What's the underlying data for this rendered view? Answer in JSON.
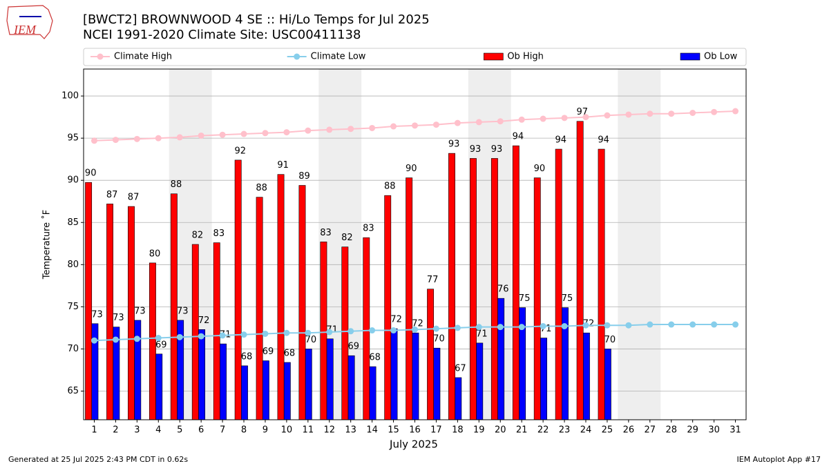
{
  "chart_data": {
    "type": "bar",
    "logo_text": "IEM",
    "title": "[BWCT2] BROWNWOOD 4 SE :: Hi/Lo Temps for Jul 2025",
    "subtitle": "NCEI 1991-2020 Climate Site: USC00411138",
    "x_label": "July 2025",
    "y_label": "Temperature ˚F",
    "footer_left": "Generated at 25 Jul 2025 2:43 PM CDT in 0.62s",
    "footer_right": "IEM Autoplot App #17",
    "x": [
      1,
      2,
      3,
      4,
      5,
      6,
      7,
      8,
      9,
      10,
      11,
      12,
      13,
      14,
      15,
      16,
      17,
      18,
      19,
      20,
      21,
      22,
      23,
      24,
      25,
      26,
      27,
      28,
      29,
      30,
      31
    ],
    "xlim": [
      0.5,
      31.5
    ],
    "xticks": [
      1,
      2,
      3,
      4,
      5,
      6,
      7,
      8,
      9,
      10,
      11,
      12,
      13,
      14,
      15,
      16,
      17,
      18,
      19,
      20,
      21,
      22,
      23,
      24,
      25,
      26,
      27,
      28,
      29,
      30,
      31
    ],
    "ylim": [
      61.6,
      103.2
    ],
    "yticks": [
      65,
      70,
      75,
      80,
      85,
      90,
      95,
      100
    ],
    "grid": true,
    "legend": "top",
    "shaded_ranges": [
      [
        4.5,
        6.5
      ],
      [
        11.5,
        13.5
      ],
      [
        18.5,
        20.5
      ],
      [
        25.5,
        27.5
      ]
    ],
    "shade_color": "#eeeeee",
    "series": [
      {
        "name": "Climate High",
        "kind": "line",
        "color": "#ffc0cb",
        "values": [
          94.7,
          94.8,
          94.9,
          95.0,
          95.1,
          95.3,
          95.4,
          95.5,
          95.6,
          95.7,
          95.9,
          96.0,
          96.1,
          96.2,
          96.4,
          96.5,
          96.6,
          96.8,
          96.9,
          97.0,
          97.2,
          97.3,
          97.4,
          97.5,
          97.7,
          97.8,
          97.9,
          97.9,
          98.0,
          98.1,
          98.2
        ]
      },
      {
        "name": "Climate Low",
        "kind": "line",
        "color": "#87ceeb",
        "values": [
          71.0,
          71.1,
          71.2,
          71.3,
          71.4,
          71.5,
          71.6,
          71.7,
          71.8,
          71.9,
          71.9,
          72.0,
          72.1,
          72.2,
          72.2,
          72.3,
          72.4,
          72.5,
          72.6,
          72.6,
          72.6,
          72.7,
          72.7,
          72.8,
          72.8,
          72.8,
          72.9,
          72.9,
          72.9,
          72.9,
          72.9
        ]
      },
      {
        "name": "Ob High",
        "kind": "bar",
        "offset": -0.27,
        "color": "#ff0000",
        "values": [
          89.75,
          87.2,
          86.9,
          80.2,
          88.4,
          82.4,
          82.6,
          92.4,
          88.0,
          90.7,
          89.4,
          82.7,
          82.1,
          83.2,
          88.2,
          90.3,
          77.1,
          93.2,
          92.6,
          92.6,
          94.1,
          90.3,
          93.7,
          97.0,
          93.7,
          null,
          null,
          null,
          null,
          null,
          null
        ],
        "value_labels": [
          "90",
          "87",
          "87",
          "80",
          "88",
          "82",
          "83",
          "92",
          "88",
          "91",
          "89",
          "83",
          "82",
          "83",
          "88",
          "90",
          "77",
          "93",
          "93",
          "93",
          "94",
          "90",
          "94",
          "97",
          "94",
          null,
          null,
          null,
          null,
          null,
          null
        ]
      },
      {
        "name": "Ob Low",
        "kind": "bar",
        "offset": 0.03,
        "color": "#0000ff",
        "values": [
          73.0,
          72.6,
          73.4,
          69.4,
          73.4,
          72.3,
          70.6,
          68.0,
          68.6,
          68.4,
          70.0,
          71.2,
          69.2,
          67.9,
          72.4,
          71.9,
          70.1,
          66.6,
          70.7,
          76.0,
          74.9,
          71.3,
          74.9,
          71.9,
          70.0,
          null,
          null,
          null,
          null,
          null,
          null
        ],
        "value_labels": [
          "73",
          "73",
          "73",
          "69",
          "73",
          "72",
          "71",
          "68",
          "69",
          "68",
          "70",
          "71",
          "69",
          "68",
          "72",
          "72",
          "70",
          "67",
          "71",
          "76",
          "75",
          "71",
          "75",
          "72",
          "70",
          null,
          null,
          null,
          null,
          null,
          null
        ]
      }
    ]
  }
}
